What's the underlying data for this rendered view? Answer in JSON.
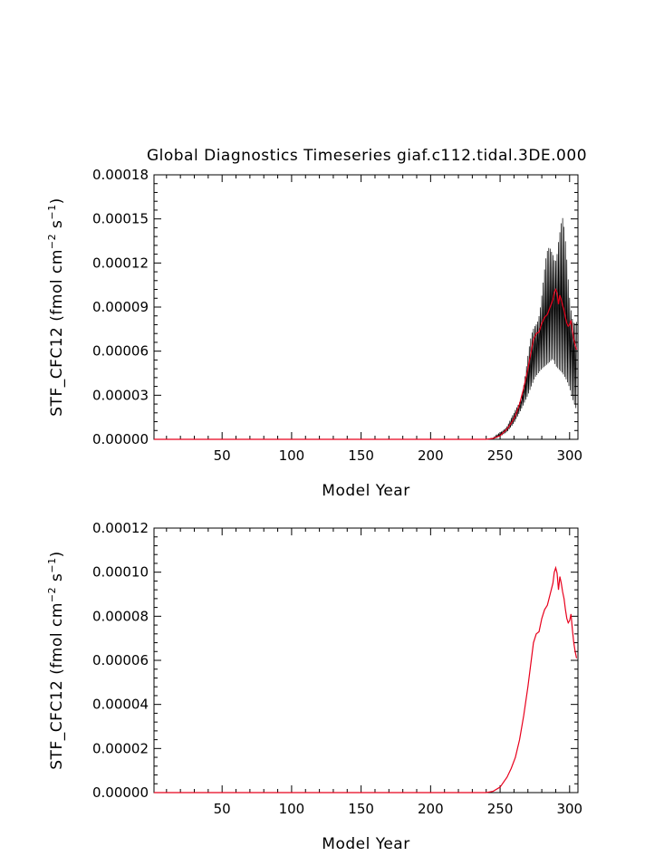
{
  "chart_data": [
    {
      "type": "line",
      "title": "Global Diagnostics Timeseries giaf.c112.tidal.3DE.000",
      "xlabel": "Model Year",
      "ylabel": "STF_CFC12 (fmol cm^-2 s^-1)",
      "ylabel_parts": [
        "STF_CFC12 (fmol cm",
        "−2",
        " s",
        "−1",
        ")"
      ],
      "xlim": [
        1,
        306
      ],
      "ylim": [
        0,
        0.00018
      ],
      "x_ticks": [
        50,
        100,
        150,
        200,
        250,
        300
      ],
      "x_tick_labels": [
        "50",
        "100",
        "150",
        "200",
        "250",
        "300"
      ],
      "y_ticks": [
        0,
        3e-05,
        6e-05,
        9e-05,
        0.00012,
        0.00015,
        0.00018
      ],
      "y_tick_labels": [
        "0.00000",
        "0.00003",
        "0.00006",
        "0.00009",
        "0.00012",
        "0.00015",
        "0.00018"
      ],
      "series": [
        {
          "color": "#000000",
          "style": "monthly (black, high-frequency)",
          "envelope": {
            "x": [
              1,
              240,
              245,
              250,
              255,
              260,
              265,
              270,
              275,
              280,
              285,
              288,
              290,
              292,
              295,
              298,
              300,
              303,
              305
            ],
            "low": [
              0,
              0,
              5e-07,
              2e-06,
              5e-06,
              1.1e-05,
              2e-05,
              3e-05,
              4.2e-05,
              4.8e-05,
              5.2e-05,
              5.5e-05,
              5e-05,
              4.8e-05,
              4.5e-05,
              4e-05,
              3.5e-05,
              2.5e-05,
              2e-05
            ],
            "high": [
              0,
              0,
              1e-06,
              5e-06,
              1e-05,
              1.8e-05,
              3e-05,
              5.8e-05,
              8.5e-05,
              0.00011,
              0.000133,
              0.000148,
              0.000152,
              0.000157,
              0.000152,
              0.00013,
              0.000115,
              0.0001,
              9e-05
            ]
          }
        },
        {
          "color": "#e8001c",
          "style": "annual mean (red)",
          "x": [
            1,
            240,
            245,
            250,
            255,
            258,
            261,
            264,
            267,
            270,
            272,
            274,
            276,
            278,
            280,
            282,
            284,
            286,
            288,
            289,
            290,
            291,
            292,
            293,
            294,
            295,
            296,
            297,
            298,
            299,
            300,
            301,
            302,
            303,
            304,
            305
          ],
          "y": [
            0,
            0,
            6e-07,
            2.5e-06,
            7e-06,
            1.1e-05,
            1.6e-05,
            2.4e-05,
            3.5e-05,
            4.8e-05,
            5.8e-05,
            6.8e-05,
            7.2e-05,
            7.3e-05,
            7.9e-05,
            8.3e-05,
            8.5e-05,
            9e-05,
            9.5e-05,
            0.0001,
            0.000102,
            9.95e-05,
            9.2e-05,
            9.8e-05,
            9.5e-05,
            9.1e-05,
            8.8e-05,
            8.3e-05,
            7.9e-05,
            7.7e-05,
            7.8e-05,
            8.1e-05,
            7.4e-05,
            6.8e-05,
            6.4e-05,
            6.1e-05
          ]
        }
      ]
    },
    {
      "type": "line",
      "xlabel": "Model Year",
      "ylabel": "STF_CFC12 (fmol cm^-2 s^-1)",
      "ylabel_parts": [
        "STF_CFC12 (fmol cm",
        "−2",
        " s",
        "−1",
        ")"
      ],
      "xlim": [
        1,
        306
      ],
      "ylim": [
        0,
        0.00012
      ],
      "x_ticks": [
        50,
        100,
        150,
        200,
        250,
        300
      ],
      "x_tick_labels": [
        "50",
        "100",
        "150",
        "200",
        "250",
        "300"
      ],
      "y_ticks": [
        0,
        2e-05,
        4e-05,
        6e-05,
        8e-05,
        0.0001,
        0.00012
      ],
      "y_tick_labels": [
        "0.00000",
        "0.00002",
        "0.00004",
        "0.00006",
        "0.00008",
        "0.00010",
        "0.00012"
      ],
      "series": [
        {
          "color": "#e8001c",
          "style": "annual mean (red)",
          "x": [
            1,
            240,
            245,
            250,
            255,
            258,
            261,
            264,
            267,
            270,
            272,
            274,
            276,
            278,
            280,
            282,
            284,
            286,
            288,
            289,
            290,
            291,
            292,
            293,
            294,
            295,
            296,
            297,
            298,
            299,
            300,
            301,
            302,
            303,
            304,
            305
          ],
          "y": [
            0,
            0,
            6e-07,
            2.5e-06,
            7e-06,
            1.1e-05,
            1.6e-05,
            2.4e-05,
            3.5e-05,
            4.8e-05,
            5.8e-05,
            6.8e-05,
            7.2e-05,
            7.3e-05,
            7.9e-05,
            8.3e-05,
            8.5e-05,
            9e-05,
            9.5e-05,
            0.0001,
            0.000102,
            9.95e-05,
            9.2e-05,
            9.8e-05,
            9.5e-05,
            9.1e-05,
            8.8e-05,
            8.3e-05,
            7.9e-05,
            7.7e-05,
            7.8e-05,
            8.1e-05,
            7.4e-05,
            6.8e-05,
            6.4e-05,
            6.1e-05
          ]
        }
      ]
    }
  ]
}
